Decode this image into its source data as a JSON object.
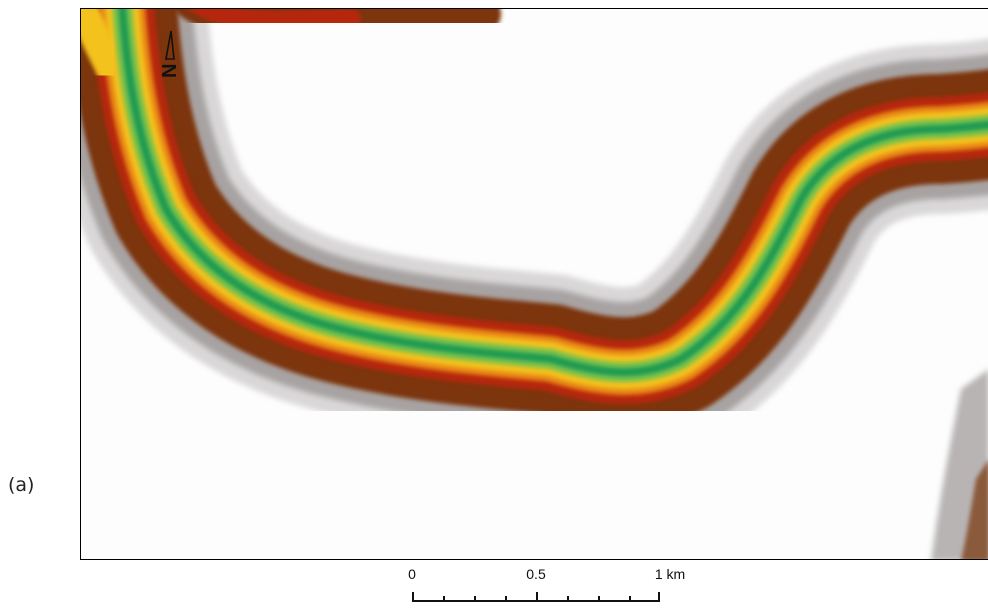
{
  "figure": {
    "panel_label": "(a)"
  },
  "map": {
    "north_arrow_letter": "N",
    "north_arrow_icon": "north-arrow-icon",
    "colors": {
      "channel_green_dark": "#1f9a52",
      "channel_green": "#79c24b",
      "yellow": "#f3c21a",
      "orange": "#e88512",
      "red": "#b6280d",
      "brown": "#7b3511",
      "grey": "#a8a3a3",
      "light_grey": "#d9d7d8",
      "background": "#fdfdfe"
    }
  },
  "scalebar": {
    "labels": [
      "0",
      "0.5",
      "1 km"
    ]
  }
}
